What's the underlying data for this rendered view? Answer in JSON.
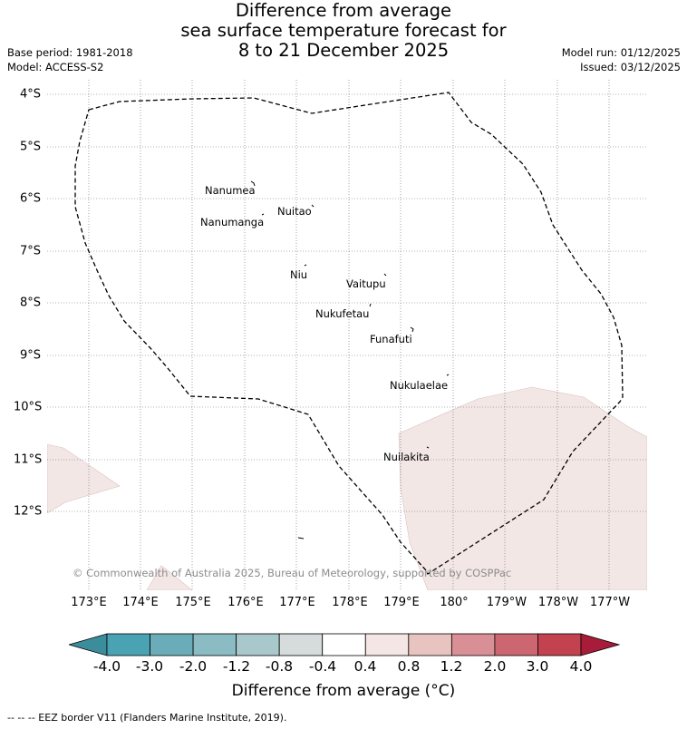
{
  "title": {
    "line1": "Difference from average",
    "line2": "sea surface temperature forecast for",
    "line3": "8 to 21 December 2025"
  },
  "meta": {
    "base_period": "Base period: 1981-2018",
    "model": "Model: ACCESS-S2",
    "model_run": "Model run: 01/12/2025",
    "issued": "Issued: 03/12/2025"
  },
  "axes": {
    "lon_labels": [
      "173°E",
      "174°E",
      "175°E",
      "176°E",
      "177°E",
      "178°E",
      "179°E",
      "180°",
      "179°W",
      "178°W",
      "177°W"
    ],
    "lat_labels": [
      "4°S",
      "5°S",
      "6°S",
      "7°S",
      "8°S",
      "9°S",
      "10°S",
      "11°S",
      "12°S"
    ]
  },
  "islands": [
    {
      "name": "Nanumea"
    },
    {
      "name": "Nuitao"
    },
    {
      "name": "Nanumanga"
    },
    {
      "name": "Niu"
    },
    {
      "name": "Vaitupu"
    },
    {
      "name": "Nukufetau"
    },
    {
      "name": "Funafuti"
    },
    {
      "name": "Nukulaelae"
    },
    {
      "name": "Nuilakita"
    }
  ],
  "copyright": "© Commonwealth of Australia 2025, Bureau of Meteorology, supported by COSPPac",
  "colorbar": {
    "ticks": [
      "-4.0",
      "-3.0",
      "-2.0",
      "-1.2",
      "-0.8",
      "-0.4",
      "0.4",
      "0.8",
      "1.2",
      "2.0",
      "3.0",
      "4.0"
    ],
    "colors": [
      "#4aa3b3",
      "#6aadb9",
      "#8bbcc4",
      "#a9c8cb",
      "#d6dbdb",
      "#ffffff",
      "#f3e6e4",
      "#e8c4c0",
      "#d98f96",
      "#cc6670",
      "#c2434f"
    ],
    "under_color": "#3c8d9b",
    "over_color": "#a81c3a",
    "label": "Difference from average (°C)"
  },
  "legend": "--  --  -- EEZ border V11 (Flanders Marine Institute, 2019)."
}
